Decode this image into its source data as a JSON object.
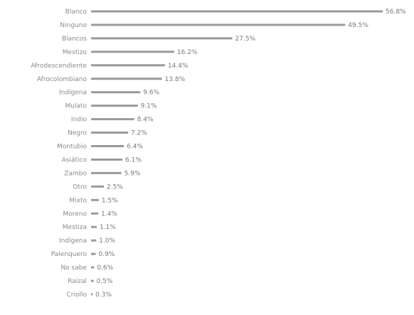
{
  "colors": {
    "bar": "#9a9a9a",
    "label": "#8a8a8a",
    "value": "#7a7a7a",
    "background": "#ffffff"
  },
  "chart_data": {
    "type": "bar",
    "orientation": "horizontal",
    "grid": false,
    "legend": "none",
    "xlim": [
      0,
      56.8
    ],
    "categories": [
      "Blanco",
      "Ninguno",
      "Blancos",
      "Mestizo",
      "Afrodescendiente",
      "Afrocolombiano",
      "Indígena",
      "Mulato",
      "Indio",
      "Negro",
      "Montubio",
      "Asiático",
      "Zambo",
      "Otro",
      "Mixto",
      "Moreno",
      "Mestiza",
      "Indígena",
      "Palenquero",
      "No sabe",
      "Raizal",
      "Criollo"
    ],
    "values": [
      56.8,
      49.5,
      27.5,
      16.2,
      14.4,
      13.8,
      9.6,
      9.1,
      8.4,
      7.2,
      6.4,
      6.1,
      5.9,
      2.5,
      1.5,
      1.4,
      1.1,
      1.0,
      0.9,
      0.6,
      0.5,
      0.3
    ],
    "value_labels": [
      "56.8%",
      "49.5%",
      "27.5%",
      "16.2%",
      "14.4%",
      "13.8%",
      "9.6%",
      "9.1%",
      "8.4%",
      "7.2%",
      "6.4%",
      "6.1%",
      "5.9%",
      "2.5%",
      "1.5%",
      "1.4%",
      "1.1%",
      "1.0%",
      "0.9%",
      "0.6%",
      "0.5%",
      "0.3%"
    ]
  }
}
